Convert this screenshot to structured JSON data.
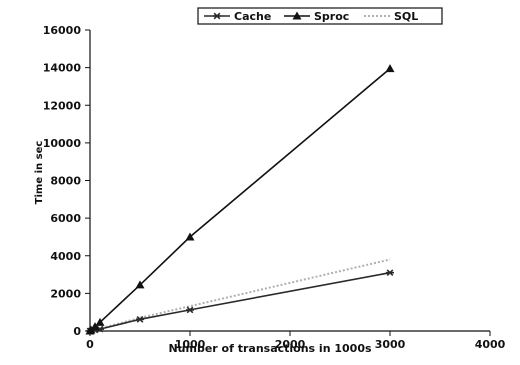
{
  "chart_data": {
    "type": "line",
    "title": "",
    "xlabel": "Number of transactions in 1000s",
    "ylabel": "Time in sec",
    "xlim": [
      0,
      4000
    ],
    "ylim": [
      0,
      16000
    ],
    "xticks": [
      0,
      1000,
      2000,
      3000,
      4000
    ],
    "yticks": [
      0,
      2000,
      4000,
      6000,
      8000,
      10000,
      12000,
      14000,
      16000
    ],
    "grid": false,
    "legend_position": "top-center",
    "series": [
      {
        "name": "Cache",
        "marker": "asterisk",
        "color": "#2a2a2a",
        "dash": "solid",
        "x": [
          0,
          10,
          50,
          100,
          500,
          1000,
          3000
        ],
        "y": [
          0,
          10,
          50,
          100,
          620,
          1120,
          3100
        ]
      },
      {
        "name": "Sproc",
        "marker": "triangle",
        "color": "#111111",
        "dash": "solid",
        "x": [
          0,
          10,
          50,
          100,
          500,
          1000,
          3000
        ],
        "y": [
          0,
          50,
          230,
          460,
          2450,
          5000,
          13950
        ]
      },
      {
        "name": "SQL",
        "marker": "none",
        "color": "#b0b0b0",
        "dash": "dotted",
        "x": [
          0,
          10,
          50,
          100,
          500,
          1000,
          3000
        ],
        "y": [
          0,
          15,
          60,
          130,
          700,
          1320,
          3800
        ]
      }
    ]
  }
}
